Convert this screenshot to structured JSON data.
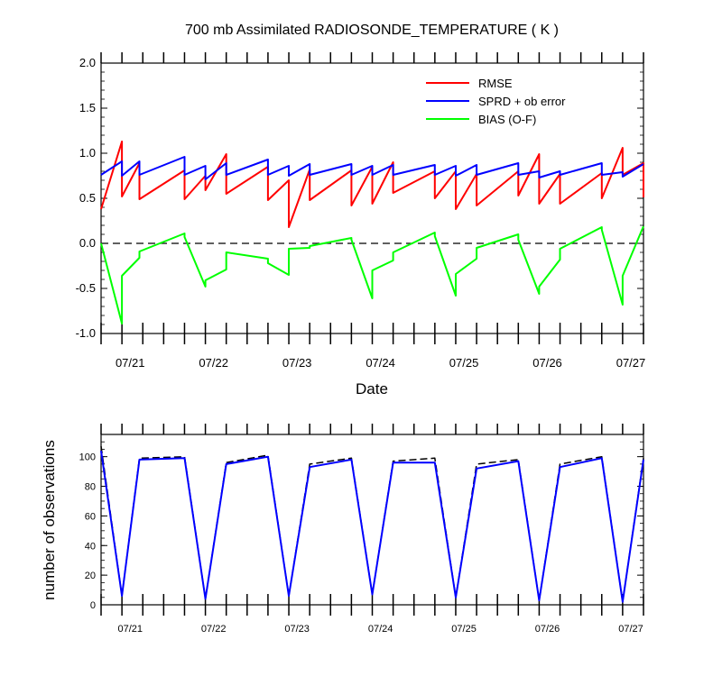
{
  "chart_data": [
    {
      "type": "line",
      "title": "700 mb Assimilated RADIOSONDE_TEMPERATURE ( K )",
      "xlabel": "Date",
      "ylabel": "",
      "xlim": [
        20.5,
        27.0
      ],
      "ylim": [
        -1.0,
        2.0
      ],
      "x_ticks": [
        {
          "x": 21,
          "label": "07/21"
        },
        {
          "x": 22,
          "label": "07/22"
        },
        {
          "x": 23,
          "label": "07/23"
        },
        {
          "x": 24,
          "label": "07/24"
        },
        {
          "x": 25,
          "label": "07/25"
        },
        {
          "x": 26,
          "label": "07/26"
        },
        {
          "x": 27,
          "label": "07/27"
        }
      ],
      "y_ticks": [
        {
          "y": 2.0,
          "label": "2.0"
        },
        {
          "y": 1.5,
          "label": "1.5"
        },
        {
          "y": 1.0,
          "label": "1.0"
        },
        {
          "y": 0.5,
          "label": "0.5"
        },
        {
          "y": 0.0,
          "label": "0.0"
        },
        {
          "y": -0.5,
          "label": "-0.5"
        },
        {
          "y": -1.0,
          "label": "-1.0"
        }
      ],
      "zero_line": true,
      "legend_position": "top-right",
      "series": [
        {
          "name": "RMSE",
          "color": "#ff0000",
          "points": [
            [
              20.5,
              0.38
            ],
            [
              20.75,
              1.13
            ],
            [
              20.75,
              0.52
            ],
            [
              20.96,
              0.89
            ],
            [
              20.96,
              0.49
            ],
            [
              21.5,
              0.81
            ],
            [
              21.5,
              0.49
            ],
            [
              21.75,
              0.75
            ],
            [
              21.75,
              0.59
            ],
            [
              22.0,
              0.99
            ],
            [
              22.0,
              0.55
            ],
            [
              22.5,
              0.85
            ],
            [
              22.5,
              0.48
            ],
            [
              22.75,
              0.7
            ],
            [
              22.75,
              0.18
            ],
            [
              23.0,
              0.82
            ],
            [
              23.0,
              0.48
            ],
            [
              23.5,
              0.81
            ],
            [
              23.5,
              0.42
            ],
            [
              23.75,
              0.85
            ],
            [
              23.75,
              0.44
            ],
            [
              24.0,
              0.9
            ],
            [
              24.0,
              0.56
            ],
            [
              24.5,
              0.8
            ],
            [
              24.5,
              0.5
            ],
            [
              24.75,
              0.8
            ],
            [
              24.75,
              0.38
            ],
            [
              25.0,
              0.77
            ],
            [
              25.0,
              0.42
            ],
            [
              25.5,
              0.8
            ],
            [
              25.5,
              0.53
            ],
            [
              25.75,
              0.99
            ],
            [
              25.75,
              0.44
            ],
            [
              26.0,
              0.77
            ],
            [
              26.0,
              0.44
            ],
            [
              26.5,
              0.78
            ],
            [
              26.5,
              0.5
            ],
            [
              26.75,
              1.06
            ],
            [
              26.75,
              0.76
            ],
            [
              27.0,
              0.89
            ],
            [
              27.0,
              0.51
            ]
          ]
        },
        {
          "name": "SPRD + ob error",
          "color": "#0000ff",
          "points": [
            [
              20.5,
              0.76
            ],
            [
              20.75,
              0.91
            ],
            [
              20.75,
              0.75
            ],
            [
              20.96,
              0.91
            ],
            [
              20.96,
              0.76
            ],
            [
              21.5,
              0.96
            ],
            [
              21.5,
              0.76
            ],
            [
              21.75,
              0.86
            ],
            [
              21.75,
              0.71
            ],
            [
              22.0,
              0.89
            ],
            [
              22.0,
              0.76
            ],
            [
              22.5,
              0.93
            ],
            [
              22.5,
              0.76
            ],
            [
              22.75,
              0.86
            ],
            [
              22.75,
              0.75
            ],
            [
              23.0,
              0.88
            ],
            [
              23.0,
              0.76
            ],
            [
              23.5,
              0.88
            ],
            [
              23.5,
              0.76
            ],
            [
              23.75,
              0.86
            ],
            [
              23.75,
              0.76
            ],
            [
              24.0,
              0.87
            ],
            [
              24.0,
              0.76
            ],
            [
              24.5,
              0.87
            ],
            [
              24.5,
              0.76
            ],
            [
              24.75,
              0.86
            ],
            [
              24.75,
              0.75
            ],
            [
              25.0,
              0.87
            ],
            [
              25.0,
              0.76
            ],
            [
              25.5,
              0.89
            ],
            [
              25.5,
              0.76
            ],
            [
              25.75,
              0.8
            ],
            [
              25.75,
              0.73
            ],
            [
              26.0,
              0.8
            ],
            [
              26.0,
              0.76
            ],
            [
              26.5,
              0.89
            ],
            [
              26.5,
              0.76
            ],
            [
              26.75,
              0.79
            ],
            [
              26.75,
              0.74
            ],
            [
              27.0,
              0.88
            ]
          ]
        },
        {
          "name": "BIAS (O-F)",
          "color": "#00ff00",
          "points": [
            [
              20.5,
              0.0
            ],
            [
              20.75,
              -0.89
            ],
            [
              20.75,
              -0.36
            ],
            [
              20.96,
              -0.16
            ],
            [
              20.96,
              -0.09
            ],
            [
              21.5,
              0.11
            ],
            [
              21.5,
              0.07
            ],
            [
              21.75,
              -0.48
            ],
            [
              21.75,
              -0.41
            ],
            [
              22.0,
              -0.29
            ],
            [
              22.0,
              -0.1
            ],
            [
              22.5,
              -0.17
            ],
            [
              22.5,
              -0.22
            ],
            [
              22.75,
              -0.35
            ],
            [
              22.75,
              -0.06
            ],
            [
              23.0,
              -0.05
            ],
            [
              23.0,
              -0.03
            ],
            [
              23.5,
              0.06
            ],
            [
              23.5,
              0.04
            ],
            [
              23.75,
              -0.61
            ],
            [
              23.75,
              -0.3
            ],
            [
              24.0,
              -0.19
            ],
            [
              24.0,
              -0.1
            ],
            [
              24.5,
              0.12
            ],
            [
              24.5,
              0.08
            ],
            [
              24.75,
              -0.58
            ],
            [
              24.75,
              -0.34
            ],
            [
              25.0,
              -0.17
            ],
            [
              25.0,
              -0.05
            ],
            [
              25.5,
              0.1
            ],
            [
              25.5,
              0.04
            ],
            [
              25.75,
              -0.56
            ],
            [
              25.75,
              -0.48
            ],
            [
              26.0,
              -0.18
            ],
            [
              26.0,
              -0.06
            ],
            [
              26.5,
              0.18
            ],
            [
              26.5,
              0.15
            ],
            [
              26.75,
              -0.68
            ],
            [
              26.75,
              -0.36
            ],
            [
              27.0,
              0.19
            ]
          ]
        }
      ]
    },
    {
      "type": "line",
      "title": "",
      "xlabel": "",
      "ylabel": "number of observations",
      "xlim": [
        20.5,
        27.0
      ],
      "ylim": [
        0,
        115
      ],
      "x_ticks": [
        {
          "x": 21,
          "label": "07/21"
        },
        {
          "x": 22,
          "label": "07/22"
        },
        {
          "x": 23,
          "label": "07/23"
        },
        {
          "x": 24,
          "label": "07/24"
        },
        {
          "x": 25,
          "label": "07/25"
        },
        {
          "x": 26,
          "label": "07/26"
        },
        {
          "x": 27,
          "label": "07/27"
        }
      ],
      "y_ticks": [
        {
          "y": 100,
          "label": "100"
        },
        {
          "y": 80,
          "label": "80"
        },
        {
          "y": 60,
          "label": "60"
        },
        {
          "y": 40,
          "label": "40"
        },
        {
          "y": 20,
          "label": "20"
        },
        {
          "y": 0,
          "label": "0"
        }
      ],
      "series": [
        {
          "color": "#000000",
          "dashed": true,
          "points": [
            [
              20.5,
              107
            ],
            [
              20.75,
              6
            ],
            [
              20.96,
              99
            ],
            [
              21.5,
              100
            ],
            [
              21.75,
              4
            ],
            [
              22.0,
              96
            ],
            [
              22.5,
              101
            ],
            [
              22.75,
              6
            ],
            [
              23.0,
              95
            ],
            [
              23.5,
              99
            ],
            [
              23.75,
              7
            ],
            [
              24.0,
              97
            ],
            [
              24.5,
              99
            ],
            [
              24.75,
              5
            ],
            [
              25.0,
              95
            ],
            [
              25.5,
              98
            ],
            [
              25.75,
              3
            ],
            [
              26.0,
              95
            ],
            [
              26.5,
              100
            ],
            [
              26.75,
              2
            ],
            [
              27.0,
              99
            ]
          ]
        },
        {
          "color": "#0000ff",
          "dashed": false,
          "points": [
            [
              20.5,
              104
            ],
            [
              20.75,
              6
            ],
            [
              20.96,
              98
            ],
            [
              21.5,
              99
            ],
            [
              21.75,
              4
            ],
            [
              22.0,
              95
            ],
            [
              22.5,
              100
            ],
            [
              22.75,
              6
            ],
            [
              23.0,
              93
            ],
            [
              23.5,
              98
            ],
            [
              23.75,
              7
            ],
            [
              24.0,
              96
            ],
            [
              24.5,
              96
            ],
            [
              24.75,
              5
            ],
            [
              25.0,
              92
            ],
            [
              25.5,
              97
            ],
            [
              25.75,
              3
            ],
            [
              26.0,
              93
            ],
            [
              26.5,
              99
            ],
            [
              26.75,
              2
            ],
            [
              27.0,
              98
            ]
          ]
        }
      ]
    }
  ]
}
